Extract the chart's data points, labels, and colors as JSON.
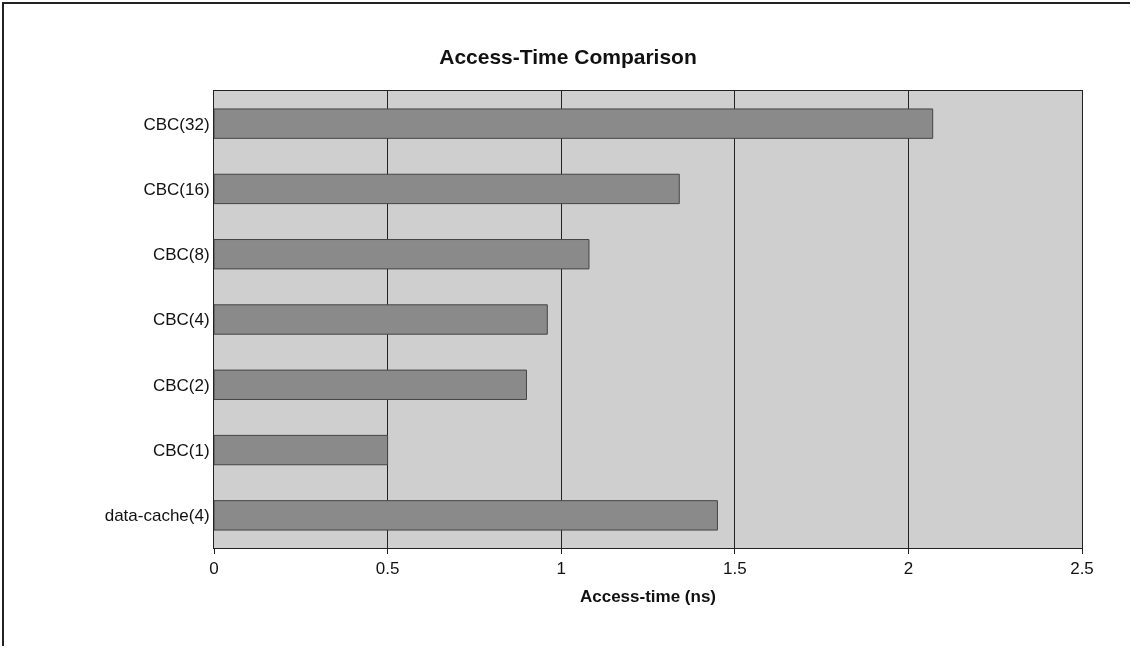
{
  "chart_data": {
    "type": "bar",
    "orientation": "horizontal",
    "title": "Access-Time Comparison",
    "xlabel": "Access-time (ns)",
    "categories": [
      "CBC(32)",
      "CBC(16)",
      "CBC(8)",
      "CBC(4)",
      "CBC(2)",
      "CBC(1)",
      "data-cache(4)"
    ],
    "values": [
      2.07,
      1.34,
      1.08,
      0.96,
      0.9,
      0.5,
      1.45
    ],
    "color": "#8a8a8a",
    "xlim": [
      0,
      2.5
    ],
    "xticks": [
      0,
      0.5,
      1,
      1.5,
      2,
      2.5
    ],
    "grid": "x",
    "legend": false
  }
}
